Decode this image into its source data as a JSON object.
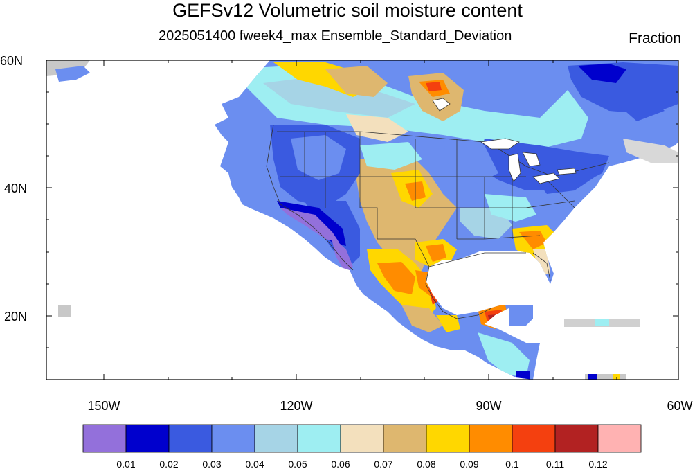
{
  "title": "GEFSv12 Volumetric soil moisture content",
  "subtitle": "2025051400 fweek4_max Ensemble_Standard_Deviation",
  "units": "Fraction",
  "map": {
    "lon_range": [
      -160,
      -60
    ],
    "lat_range": [
      10,
      60
    ],
    "lat_labels": [
      "20N",
      "40N",
      "60N"
    ],
    "lon_labels": [
      "150W",
      "120W",
      "90W",
      "60W"
    ]
  },
  "colorbar": {
    "colors": [
      "#9370db",
      "#0000cd",
      "#3a5ae0",
      "#6b8ef0",
      "#a6d4e6",
      "#9eeef2",
      "#f3e0bd",
      "#deb76f",
      "#ffd700",
      "#ff8c00",
      "#f4400f",
      "#b22222",
      "#ffb2b2"
    ],
    "labels": [
      "0.01",
      "0.02",
      "0.03",
      "0.04",
      "0.05",
      "0.06",
      "0.07",
      "0.08",
      "0.09",
      "0.1",
      "0.11",
      "0.12"
    ]
  }
}
